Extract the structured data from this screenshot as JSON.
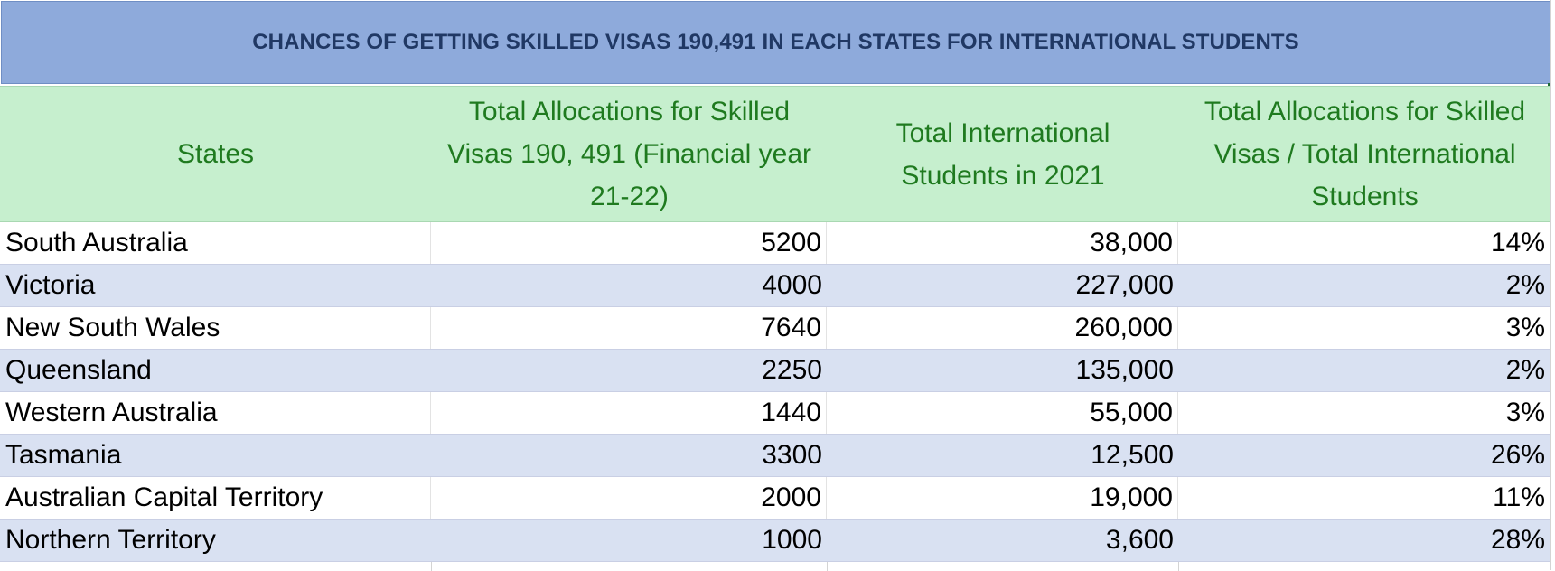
{
  "title": "CHANCES OF GETTING SKILLED VISAS 190,491 IN EACH STATES FOR INTERNATIONAL STUDENTS",
  "colors": {
    "title_background": "#8eaadb",
    "title_text": "#203864",
    "header_background": "#c6efce",
    "header_text": "#1f7a1f",
    "band_row": "#d9e1f2"
  },
  "headers": {
    "states": "States",
    "allocations": [
      "Total Allocations for Skilled",
      "Visas 190, 491 (Financial year",
      "21-22)"
    ],
    "students": [
      "Total International",
      "Students in 2021"
    ],
    "ratio": [
      "Total Allocations for Skilled",
      "Visas / Total International",
      "Students"
    ]
  },
  "rows": [
    {
      "state": "South Australia",
      "allocations": "5200",
      "students": "38,000",
      "ratio": "14%"
    },
    {
      "state": "Victoria",
      "allocations": "4000",
      "students": "227,000",
      "ratio": "2%"
    },
    {
      "state": "New South Wales",
      "allocations": "7640",
      "students": "260,000",
      "ratio": "3%"
    },
    {
      "state": "Queensland",
      "allocations": "2250",
      "students": "135,000",
      "ratio": "2%"
    },
    {
      "state": "Western Australia",
      "allocations": "1440",
      "students": "55,000",
      "ratio": "3%"
    },
    {
      "state": "Tasmania",
      "allocations": "3300",
      "students": "12,500",
      "ratio": "26%"
    },
    {
      "state": "Australian Capital Territory",
      "allocations": "2000",
      "students": "19,000",
      "ratio": "11%"
    },
    {
      "state": "Northern Territory",
      "allocations": "1000",
      "students": "3,600",
      "ratio": "28%"
    }
  ]
}
